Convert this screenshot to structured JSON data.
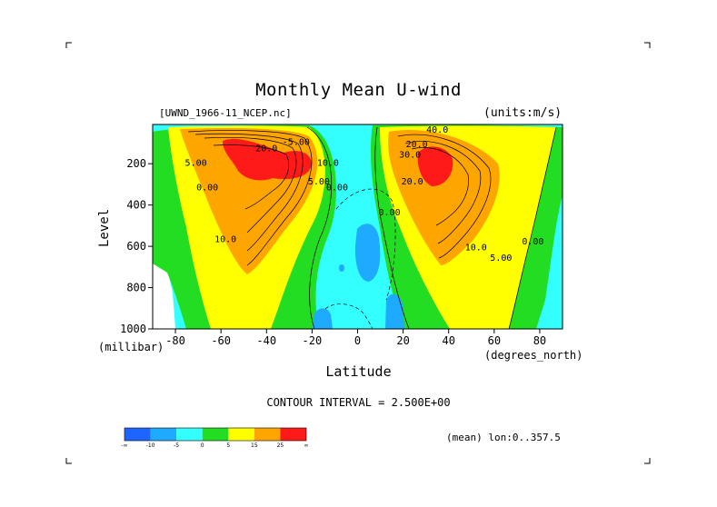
{
  "title": "Monthly Mean U-wind",
  "dataset_label": "[UWND_1966-11_NCEP.nc]",
  "units_label": "(units:m/s)",
  "footer": {
    "contour_interval": "CONTOUR INTERVAL = 2.500E+00",
    "mean_lon": "(mean) lon:0..357.5"
  },
  "colorbar": {
    "colors": [
      "#1e64ff",
      "#1eaaff",
      "#33ffff",
      "#22dd22",
      "#ffff00",
      "#ffa500",
      "#ff1a1a"
    ],
    "labels": [
      "-∞",
      "-10",
      "-5",
      "0",
      "5",
      "15",
      "25",
      "∞"
    ]
  },
  "chart_data": {
    "type": "contour",
    "title": "Monthly Mean U-wind",
    "xlabel": "Latitude",
    "xunits": "(degrees_north)",
    "ylabel": "Level",
    "yunits": "(millibar)",
    "xlim": [
      -90,
      90
    ],
    "ylim": [
      1000,
      10
    ],
    "xticks": [
      -80,
      -60,
      -40,
      -20,
      0,
      20,
      40,
      60,
      80
    ],
    "yticks": [
      200,
      400,
      600,
      800,
      1000
    ],
    "contour_interval": 2.5,
    "contour_labels": [
      {
        "text": "-5.00",
        "x": -27,
        "y": 110
      },
      {
        "text": "20.0",
        "x": -40,
        "y": 140
      },
      {
        "text": "10.0",
        "x": -13,
        "y": 210
      },
      {
        "text": "5.00",
        "x": -17,
        "y": 300
      },
      {
        "text": "0.00",
        "x": -9,
        "y": 330
      },
      {
        "text": "5.00",
        "x": -71,
        "y": 210
      },
      {
        "text": "0.00",
        "x": -66,
        "y": 330
      },
      {
        "text": "10.0",
        "x": -58,
        "y": 580
      },
      {
        "text": "0.00",
        "x": 14,
        "y": 450
      },
      {
        "text": "40.0",
        "x": 35,
        "y": 50
      },
      {
        "text": "20.0",
        "x": 26,
        "y": 120
      },
      {
        "text": "30.0",
        "x": 23,
        "y": 170
      },
      {
        "text": "20.0",
        "x": 24,
        "y": 300
      },
      {
        "text": "10.0",
        "x": 52,
        "y": 620
      },
      {
        "text": "5.00",
        "x": 63,
        "y": 670
      },
      {
        "text": "0.00",
        "x": 77,
        "y": 590
      }
    ],
    "bands": [
      {
        "range": "< -10",
        "color": "#1e64ff"
      },
      {
        "range": "-10 to -5",
        "color": "#1eaaff"
      },
      {
        "range": "-5 to 0",
        "color": "#33ffff"
      },
      {
        "range": "0 to 5",
        "color": "#22dd22"
      },
      {
        "range": "5 to 15",
        "color": "#ffff00"
      },
      {
        "range": "15 to 25",
        "color": "#ffa500"
      },
      {
        "range": "> 25",
        "color": "#ff1a1a"
      }
    ]
  }
}
